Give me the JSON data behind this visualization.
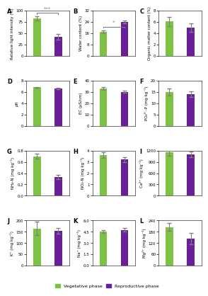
{
  "panels": [
    {
      "label": "A",
      "ylabel": "Relative light intensity (%)",
      "ylim": [
        0,
        100
      ],
      "yticks": [
        0,
        25,
        50,
        75,
        100
      ],
      "veg_val": 83,
      "veg_err": 4,
      "rep_val": 42,
      "rep_err": 6,
      "sig": "***",
      "sig_bracket": true
    },
    {
      "label": "B",
      "ylabel": "Water content (%)",
      "ylim": [
        0,
        32
      ],
      "yticks": [
        0,
        8,
        16,
        24,
        32
      ],
      "veg_val": 17,
      "veg_err": 1.2,
      "rep_val": 24,
      "rep_err": 1.0,
      "sig": "*",
      "sig_bracket": true
    },
    {
      "label": "C",
      "ylabel": "Organic matter content (%)",
      "ylim": [
        0,
        8
      ],
      "yticks": [
        0,
        2,
        4,
        6,
        8
      ],
      "veg_val": 6.1,
      "veg_err": 0.8,
      "rep_val": 5.0,
      "rep_err": 0.7,
      "sig": null,
      "sig_bracket": false
    },
    {
      "label": "D",
      "ylabel": "pH",
      "ylim": [
        0,
        8
      ],
      "yticks": [
        0,
        2,
        4,
        6,
        8
      ],
      "veg_val": 6.8,
      "veg_err": 0.1,
      "rep_val": 6.6,
      "rep_err": 0.1,
      "sig": null,
      "sig_bracket": false
    },
    {
      "label": "E",
      "ylabel": "EC (μS/cm)",
      "ylim": [
        0,
        40
      ],
      "yticks": [
        0,
        10,
        20,
        30,
        40
      ],
      "veg_val": 33,
      "veg_err": 1.5,
      "rep_val": 30,
      "rep_err": 1.0,
      "sig": null,
      "sig_bracket": false
    },
    {
      "label": "F",
      "ylabel": "PO₄³⁻-P (mg kg⁻¹)",
      "ylim": [
        0,
        20
      ],
      "yticks": [
        0,
        5,
        10,
        15,
        20
      ],
      "veg_val": 15,
      "veg_err": 1.5,
      "rep_val": 14,
      "rep_err": 1.2,
      "sig": null,
      "sig_bracket": false
    },
    {
      "label": "G",
      "ylabel": "NH₄-N (mg kg⁻¹)",
      "ylim": [
        0,
        0.8
      ],
      "yticks": [
        0.0,
        0.2,
        0.4,
        0.6,
        0.8
      ],
      "veg_val": 0.7,
      "veg_err": 0.04,
      "rep_val": 0.33,
      "rep_err": 0.04,
      "sig": null,
      "sig_bracket": false
    },
    {
      "label": "H",
      "ylabel": "NO₃-N (mg kg⁻¹)",
      "ylim": [
        0,
        4
      ],
      "yticks": [
        0,
        1,
        2,
        3,
        4
      ],
      "veg_val": 3.6,
      "veg_err": 0.25,
      "rep_val": 3.2,
      "rep_err": 0.2,
      "sig": null,
      "sig_bracket": false
    },
    {
      "label": "I",
      "ylabel": "Ca²⁺ (mg kg⁻¹)",
      "ylim": [
        0,
        1200
      ],
      "yticks": [
        0,
        300,
        600,
        900,
        1200
      ],
      "veg_val": 1150,
      "veg_err": 80,
      "rep_val": 1100,
      "rep_err": 70,
      "sig": null,
      "sig_bracket": false
    },
    {
      "label": "J",
      "ylabel": "K⁺ (mg kg⁻¹)",
      "ylim": [
        0,
        200
      ],
      "yticks": [
        0,
        50,
        100,
        150,
        200
      ],
      "veg_val": 165,
      "veg_err": 30,
      "rep_val": 155,
      "rep_err": 12,
      "sig": null,
      "sig_bracket": false
    },
    {
      "label": "K",
      "ylabel": "Na⁺ (mg kg⁻¹)",
      "ylim": [
        0.0,
        6.0
      ],
      "yticks": [
        0.0,
        1.5,
        3.0,
        4.5,
        6.0
      ],
      "veg_val": 4.55,
      "veg_err": 0.2,
      "rep_val": 4.75,
      "rep_err": 0.25,
      "sig": null,
      "sig_bracket": false
    },
    {
      "label": "L",
      "ylabel": "Mg²⁺ (mg kg⁻¹)",
      "ylim": [
        0,
        240
      ],
      "yticks": [
        0,
        60,
        120,
        180,
        240
      ],
      "veg_val": 205,
      "veg_err": 20,
      "rep_val": 145,
      "rep_err": 30,
      "sig": null,
      "sig_bracket": false
    }
  ],
  "color_veg": "#7dc242",
  "color_rep": "#6a1f9a",
  "bar_width": 0.35,
  "legend_labels": [
    "Vegetative phase",
    "Reproductive phase"
  ],
  "fig_bg": "#ffffff"
}
